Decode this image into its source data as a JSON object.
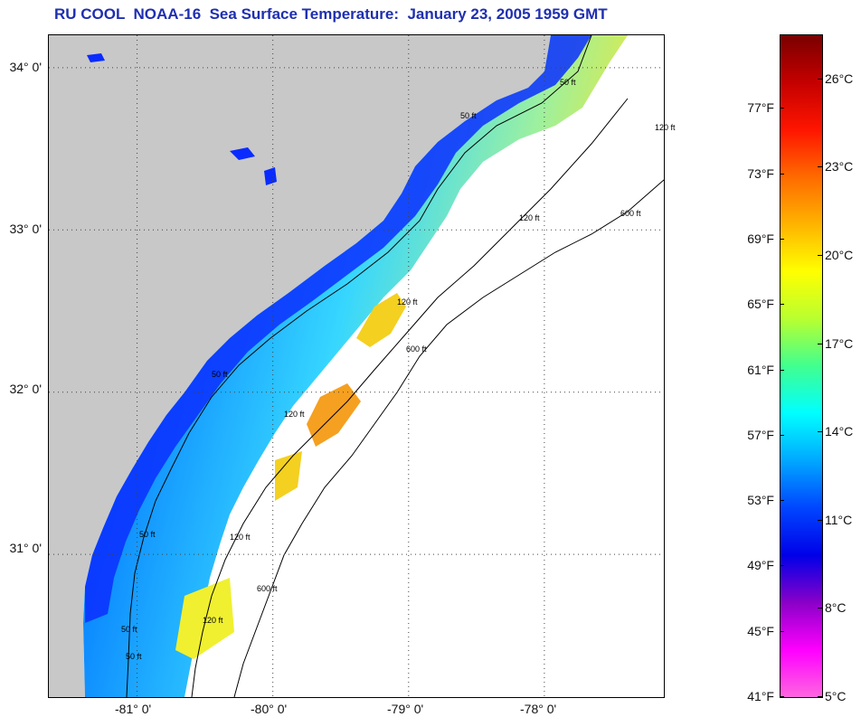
{
  "title": "RU COOL  NOAA-16  Sea Surface Temperature:  January 23, 2005 1959 GMT",
  "map": {
    "lat_labels": [
      "34° 0'",
      "33° 0'",
      "32° 0'",
      "31° 0'"
    ],
    "lon_labels": [
      "-81° 0'",
      "-80° 0'",
      "-79° 0'",
      "-78° 0'"
    ],
    "lat_values": [
      34,
      33,
      32,
      31
    ],
    "lon_values": [
      -81,
      -80,
      -79,
      -78
    ],
    "lat_range": [
      30.12,
      34.2
    ],
    "lon_range": [
      -81.65,
      -77.12
    ],
    "grid": "dotted",
    "land_color": "#c8c8c8",
    "contour_labels": [
      "50 ft",
      "120 ft",
      "600 ft"
    ],
    "contour_label_instances": [
      "50 ft",
      "50 ft",
      "50 ft",
      "50 ft",
      "50 ft",
      "50 ft",
      "120 ft",
      "120 ft",
      "120 ft",
      "120 ft",
      "120 ft",
      "120 ft",
      "600 ft",
      "600 ft",
      "600 ft"
    ]
  },
  "colorbar": {
    "fahrenheit_labels": [
      "77°F",
      "73°F",
      "69°F",
      "65°F",
      "61°F",
      "57°F",
      "53°F",
      "49°F",
      "45°F",
      "41°F"
    ],
    "fahrenheit_values": [
      77,
      73,
      69,
      65,
      61,
      57,
      53,
      49,
      45,
      41
    ],
    "celsius_labels": [
      "26°C",
      "23°C",
      "20°C",
      "17°C",
      "14°C",
      "11°C",
      "8°C",
      "5°C"
    ],
    "celsius_values": [
      26,
      23,
      20,
      17,
      14,
      11,
      8,
      5
    ],
    "range_c": [
      5,
      27.5
    ],
    "colors_top_to_bottom": [
      "#7a0000",
      "#c40000",
      "#ff1500",
      "#ff6a00",
      "#ffb400",
      "#ffff00",
      "#b8ff30",
      "#40ff90",
      "#00ffff",
      "#00a8ff",
      "#0046ff",
      "#0000e8",
      "#8a00c8",
      "#ff00ff",
      "#ff66e0"
    ]
  }
}
